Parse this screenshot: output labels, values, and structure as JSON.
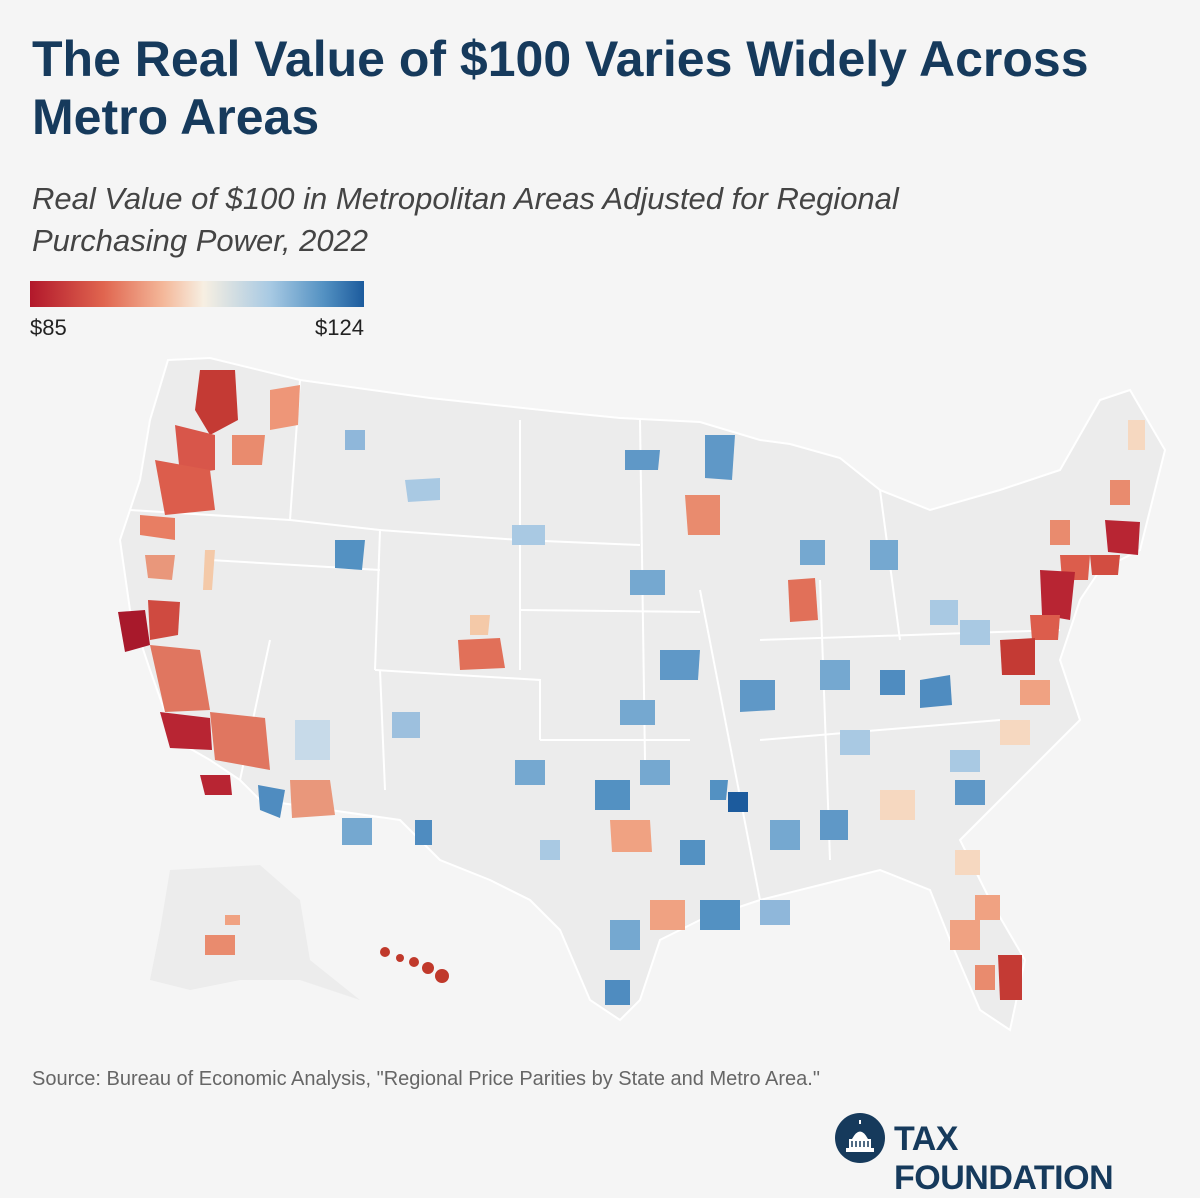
{
  "header": {
    "title": "The Real Value of $100 Varies Widely Across Metro Areas",
    "subtitle": "Real Value of $100 in Metropolitan Areas Adjusted for Regional Purchasing Power, 2022"
  },
  "legend": {
    "min_label": "$85",
    "max_label": "$124",
    "min_value": 85,
    "max_value": 124,
    "colors": [
      "#b2182b",
      "#e0654f",
      "#f4b89a",
      "#f7efe2",
      "#a7c9e3",
      "#5391c2",
      "#1c5b9d"
    ]
  },
  "map": {
    "land_color": "#ececec",
    "non_metro_color": "#d8d8d8"
  },
  "footer": {
    "source": "Source: Bureau of Economic Analysis, \"Regional Price Parities by State and Metro Area.\"",
    "brand": "TAX FOUNDATION"
  }
}
